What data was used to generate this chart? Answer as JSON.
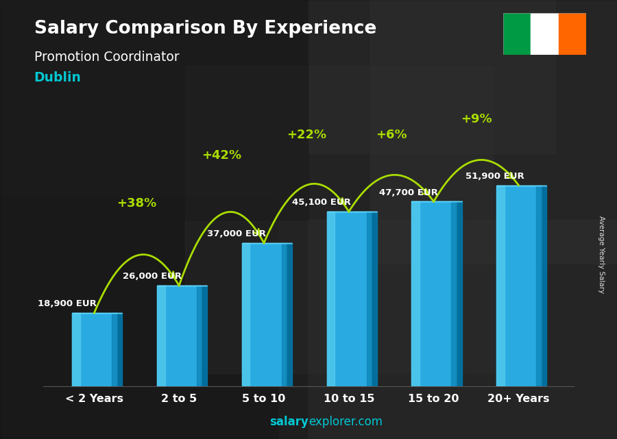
{
  "title": "Salary Comparison By Experience",
  "subtitle": "Promotion Coordinator",
  "city": "Dublin",
  "city_color": "#00c8d4",
  "categories": [
    "< 2 Years",
    "2 to 5",
    "5 to 10",
    "10 to 15",
    "15 to 20",
    "20+ Years"
  ],
  "values": [
    18900,
    26000,
    37000,
    45100,
    47700,
    51900
  ],
  "labels": [
    "18,900 EUR",
    "26,000 EUR",
    "37,000 EUR",
    "45,100 EUR",
    "47,700 EUR",
    "51,900 EUR"
  ],
  "pct_changes": [
    "+38%",
    "+42%",
    "+22%",
    "+6%",
    "+9%"
  ],
  "bar_face_color": "#29abe2",
  "bar_left_color": "#55ccee",
  "bar_right_color": "#1188bb",
  "bar_top_color": "#66ddff",
  "bar_shadow_color": "#0077aa",
  "background_color": "#3a3a3a",
  "ylabel": "Average Yearly Salary",
  "arrow_color": "#aadd00",
  "pct_color": "#aadd00",
  "value_color": "#ffffff",
  "title_color": "#ffffff",
  "subtitle_color": "#ffffff",
  "flag_colors": [
    "#009A44",
    "#FFFFFF",
    "#FF6600"
  ],
  "ylim_max": 68000,
  "bar_width": 0.52,
  "watermark_bold": "salary",
  "watermark_rest": "explorer.com",
  "watermark_color": "#00c8d4"
}
